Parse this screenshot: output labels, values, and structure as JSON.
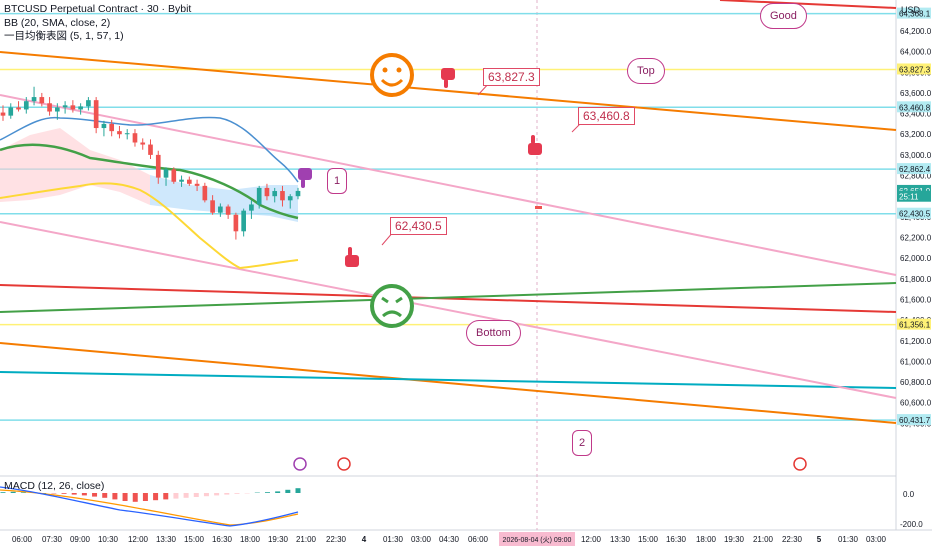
{
  "header": {
    "symbol_line": "BTCUSD Perpetual Contract · 30 · Bybit",
    "bb_line": "BB (20, SMA, close, 2)",
    "ichimoku_line": "一目均衡表図 (5, 1, 57, 1)",
    "macd_line": "MACD (12, 26, close)"
  },
  "axis": {
    "currency": "USD",
    "price_ticks": [
      "64,200.0",
      "64,000.0",
      "63,800.0",
      "63,600.0",
      "63,400.0",
      "63,200.0",
      "63,000.0",
      "62,800.0",
      "62,600.0",
      "62,400.0",
      "62,200.0",
      "62,000.0",
      "61,800.0",
      "61,600.0",
      "61,400.0",
      "61,200.0",
      "61,000.0",
      "60,800.0",
      "60,600.0",
      "60,400.0"
    ],
    "price_labels": [
      {
        "text": "64,368.1",
        "color": "#b2ebf2",
        "value": 64368.1
      },
      {
        "text": "63,827.3",
        "color": "#fff176",
        "value": 63827.3
      },
      {
        "text": "63,460.8",
        "color": "#b2ebf2",
        "value": 63460.8
      },
      {
        "text": "62,862.4",
        "color": "#b2ebf2",
        "value": 62862.4
      },
      {
        "text": "62,651.0",
        "color": "#26a69a",
        "value": 62651.0
      },
      {
        "text": "25:11",
        "color": "#26a69a",
        "value": 62595
      },
      {
        "text": "62,430.5",
        "color": "#b2ebf2",
        "value": 62430.5
      },
      {
        "text": "61,356.1",
        "color": "#fff176",
        "value": 61356.1
      },
      {
        "text": "60,431.7",
        "color": "#b2ebf2",
        "value": 60431.7
      }
    ],
    "macd_ticks": [
      "0.0",
      "-200.0"
    ],
    "time_ticks": [
      "06:00",
      "07:30",
      "09:00",
      "10:30",
      "12:00",
      "13:30",
      "15:00",
      "16:30",
      "18:00",
      "19:30",
      "21:00",
      "22:30",
      "4",
      "01:30",
      "03:00",
      "04:30",
      "06:00",
      "2026-08-04 (火)  09:00",
      "12:00",
      "13:30",
      "15:00",
      "16:30",
      "18:00",
      "19:30",
      "21:00",
      "22:30",
      "5",
      "01:30",
      "03:00"
    ]
  },
  "annotations": {
    "good": "Good",
    "top": "Top",
    "bottom": "Bottom",
    "one": "1",
    "two": "2",
    "callout_high": "63,827.3",
    "callout_mid": "63,460.8",
    "callout_low": "62,430.5"
  },
  "chart_data": {
    "type": "candlestick",
    "title": "BTCUSD Perpetual Contract · 30 · Bybit",
    "ylim": [
      59900,
      64500
    ],
    "horizontal_levels": [
      64368.1,
      63827.3,
      63460.8,
      62862.4,
      62430.5,
      61356.1,
      60431.7
    ],
    "last_price": 62651.0,
    "candles": [
      {
        "o": 63410,
        "h": 63480,
        "l": 63330,
        "c": 63380
      },
      {
        "o": 63380,
        "h": 63500,
        "l": 63350,
        "c": 63460
      },
      {
        "o": 63460,
        "h": 63520,
        "l": 63420,
        "c": 63440
      },
      {
        "o": 63440,
        "h": 63560,
        "l": 63400,
        "c": 63520
      },
      {
        "o": 63520,
        "h": 63660,
        "l": 63480,
        "c": 63560
      },
      {
        "o": 63560,
        "h": 63600,
        "l": 63470,
        "c": 63500
      },
      {
        "o": 63500,
        "h": 63560,
        "l": 63380,
        "c": 63420
      },
      {
        "o": 63420,
        "h": 63500,
        "l": 63340,
        "c": 63460
      },
      {
        "o": 63460,
        "h": 63520,
        "l": 63400,
        "c": 63480
      },
      {
        "o": 63480,
        "h": 63530,
        "l": 63410,
        "c": 63440
      },
      {
        "o": 63440,
        "h": 63500,
        "l": 63390,
        "c": 63470
      },
      {
        "o": 63470,
        "h": 63560,
        "l": 63430,
        "c": 63530
      },
      {
        "o": 63530,
        "h": 63560,
        "l": 63210,
        "c": 63260
      },
      {
        "o": 63260,
        "h": 63330,
        "l": 63180,
        "c": 63300
      },
      {
        "o": 63300,
        "h": 63340,
        "l": 63180,
        "c": 63230
      },
      {
        "o": 63230,
        "h": 63280,
        "l": 63160,
        "c": 63200
      },
      {
        "o": 63200,
        "h": 63250,
        "l": 63150,
        "c": 63210
      },
      {
        "o": 63210,
        "h": 63250,
        "l": 63080,
        "c": 63120
      },
      {
        "o": 63120,
        "h": 63160,
        "l": 63050,
        "c": 63100
      },
      {
        "o": 63100,
        "h": 63150,
        "l": 62960,
        "c": 63000
      },
      {
        "o": 63000,
        "h": 63040,
        "l": 62720,
        "c": 62780
      },
      {
        "o": 62780,
        "h": 62880,
        "l": 62700,
        "c": 62860
      },
      {
        "o": 62860,
        "h": 62880,
        "l": 62720,
        "c": 62740
      },
      {
        "o": 62740,
        "h": 62800,
        "l": 62690,
        "c": 62760
      },
      {
        "o": 62760,
        "h": 62790,
        "l": 62700,
        "c": 62720
      },
      {
        "o": 62720,
        "h": 62760,
        "l": 62650,
        "c": 62700
      },
      {
        "o": 62700,
        "h": 62730,
        "l": 62540,
        "c": 62560
      },
      {
        "o": 62560,
        "h": 62610,
        "l": 62420,
        "c": 62440
      },
      {
        "o": 62440,
        "h": 62530,
        "l": 62400,
        "c": 62500
      },
      {
        "o": 62500,
        "h": 62520,
        "l": 62380,
        "c": 62420
      },
      {
        "o": 62420,
        "h": 62440,
        "l": 62180,
        "c": 62260
      },
      {
        "o": 62260,
        "h": 62480,
        "l": 62210,
        "c": 62460
      },
      {
        "o": 62460,
        "h": 62560,
        "l": 62380,
        "c": 62520
      },
      {
        "o": 62520,
        "h": 62700,
        "l": 62480,
        "c": 62680
      },
      {
        "o": 62680,
        "h": 62720,
        "l": 62560,
        "c": 62600
      },
      {
        "o": 62600,
        "h": 62680,
        "l": 62540,
        "c": 62650
      },
      {
        "o": 62650,
        "h": 62700,
        "l": 62500,
        "c": 62560
      },
      {
        "o": 62560,
        "h": 62620,
        "l": 62480,
        "c": 62600
      },
      {
        "o": 62600,
        "h": 62680,
        "l": 62570,
        "c": 62651
      }
    ],
    "macd_histogram": [
      10,
      15,
      8,
      5,
      0,
      -5,
      -10,
      -20,
      -30,
      -45,
      -60,
      -80,
      -100,
      -110,
      -100,
      -90,
      -80,
      -70,
      -60,
      -50,
      -40,
      -30,
      -20,
      -10,
      -5,
      5,
      10,
      20,
      40,
      60
    ]
  }
}
